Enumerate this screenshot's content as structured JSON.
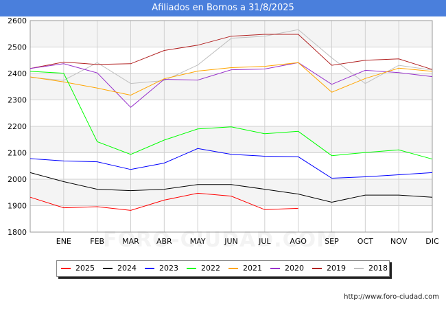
{
  "header": {
    "title": "Afiliados en Bornos a 31/8/2025"
  },
  "footer": {
    "source": "http://www.foro-ciudad.com"
  },
  "watermark": {
    "text": "FORO-CIUDAD.COM"
  },
  "chart_data": {
    "type": "line",
    "title": "Afiliados en Bornos a 31/8/2025",
    "xlabel": "",
    "ylabel": "",
    "categories": [
      "",
      "ENE",
      "FEB",
      "MAR",
      "ABR",
      "MAY",
      "JUN",
      "JUL",
      "AGO",
      "SEP",
      "OCT",
      "NOV",
      "DIC"
    ],
    "ylim": [
      1800,
      2600
    ],
    "yticks": [
      1800,
      1900,
      2000,
      2100,
      2200,
      2300,
      2400,
      2500,
      2600
    ],
    "grid": true,
    "legend_position": "bottom",
    "series": [
      {
        "name": "2025",
        "color": "#ff0000",
        "values": [
          1932,
          1892,
          1896,
          1882,
          1921,
          1947,
          1936,
          1885,
          1890,
          null,
          null,
          null,
          null
        ]
      },
      {
        "name": "2024",
        "color": "#000000",
        "values": [
          2025,
          1991,
          1962,
          1957,
          1962,
          1980,
          1980,
          1962,
          1944,
          1913,
          1940,
          1940,
          1932
        ]
      },
      {
        "name": "2023",
        "color": "#0000ff",
        "values": [
          2078,
          2069,
          2066,
          2037,
          2061,
          2116,
          2094,
          2087,
          2085,
          2004,
          2009,
          2017,
          2025
        ]
      },
      {
        "name": "2022",
        "color": "#00ff00",
        "values": [
          2408,
          2401,
          2142,
          2094,
          2148,
          2190,
          2198,
          2172,
          2181,
          2089,
          2101,
          2111,
          2076
        ]
      },
      {
        "name": "2021",
        "color": "#ffa500",
        "values": [
          2387,
          2368,
          2345,
          2318,
          2380,
          2409,
          2422,
          2427,
          2441,
          2329,
          2381,
          2420,
          2408
        ]
      },
      {
        "name": "2020",
        "color": "#9932cc",
        "values": [
          2419,
          2437,
          2402,
          2272,
          2378,
          2375,
          2414,
          2417,
          2441,
          2359,
          2412,
          2403,
          2388
        ]
      },
      {
        "name": "2019",
        "color": "#b22222",
        "values": [
          2419,
          2443,
          2434,
          2437,
          2487,
          2507,
          2541,
          2548,
          2548,
          2431,
          2450,
          2455,
          2415
        ]
      },
      {
        "name": "2018",
        "color": "#c0c0c0",
        "values": [
          2385,
          2374,
          2441,
          2362,
          2373,
          2432,
          2533,
          2541,
          2566,
          2459,
          2362,
          2431,
          2413
        ]
      }
    ]
  }
}
